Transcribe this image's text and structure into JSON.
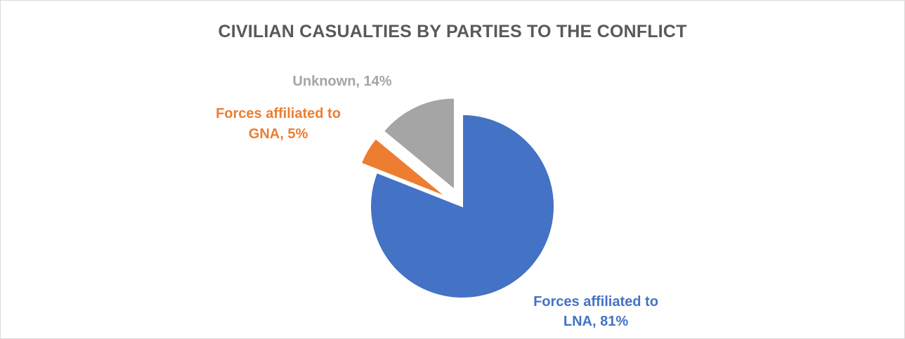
{
  "chart_data": {
    "type": "pie",
    "title": "CIVILIAN CASUALTIES BY PARTIES TO THE CONFLICT",
    "slices": [
      {
        "name": "Forces affiliated to LNA",
        "value": 81,
        "label_lines": [
          "Forces affiliated to",
          "LNA, 81%"
        ],
        "color": "#4472c4"
      },
      {
        "name": "Forces affiliated to GNA",
        "value": 5,
        "label_lines": [
          "Forces affiliated to",
          "GNA, 5%"
        ],
        "color": "#ed7d31"
      },
      {
        "name": "Unknown",
        "value": 14,
        "label_lines": [
          "Unknown, 14%"
        ],
        "color": "#a5a5a5"
      }
    ],
    "exploded": true,
    "start_angle_deg": 0,
    "legend": "none"
  }
}
